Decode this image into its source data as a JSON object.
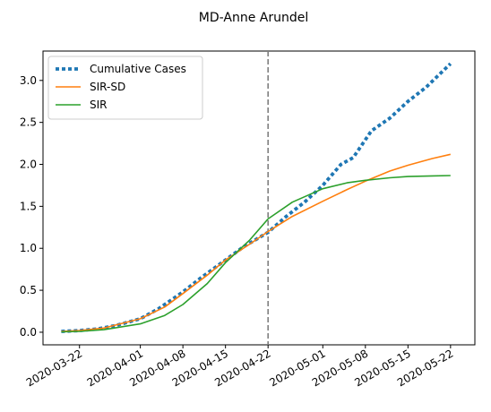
{
  "chart_data": {
    "type": "line",
    "title": "MD-Anne Arundel",
    "xlabel": "",
    "ylabel": "",
    "xlim": [
      "2020-03-16",
      "2020-05-26"
    ],
    "ylim": [
      -0.15,
      3.35
    ],
    "x_ticks": [
      "2020-03-22",
      "2020-04-01",
      "2020-04-08",
      "2020-04-15",
      "2020-04-22",
      "2020-05-01",
      "2020-05-08",
      "2020-05-15",
      "2020-05-22"
    ],
    "y_ticks": [
      "0.0",
      "0.5",
      "1.0",
      "1.5",
      "2.0",
      "2.5",
      "3.0"
    ],
    "legend_position": "top-left",
    "vline": {
      "x": "2020-04-22",
      "color": "#7f7f7f",
      "style": "dashed"
    },
    "series": [
      {
        "name": "Cumulative Cases",
        "color": "#1f77b4",
        "style": "dotted",
        "x": [
          "2020-03-19",
          "2020-03-22",
          "2020-03-25",
          "2020-03-28",
          "2020-04-01",
          "2020-04-04",
          "2020-04-08",
          "2020-04-11",
          "2020-04-15",
          "2020-04-18",
          "2020-04-22",
          "2020-04-25",
          "2020-04-28",
          "2020-05-01",
          "2020-05-04",
          "2020-05-06",
          "2020-05-09",
          "2020-05-12",
          "2020-05-15",
          "2020-05-18",
          "2020-05-22"
        ],
        "values": [
          0.01,
          0.02,
          0.04,
          0.08,
          0.16,
          0.28,
          0.48,
          0.65,
          0.86,
          1.02,
          1.19,
          1.38,
          1.55,
          1.75,
          2.0,
          2.08,
          2.4,
          2.55,
          2.75,
          2.92,
          3.2
        ]
      },
      {
        "name": "SIR-SD",
        "color": "#ff7f0e",
        "style": "solid",
        "x": [
          "2020-03-19",
          "2020-03-22",
          "2020-03-26",
          "2020-04-01",
          "2020-04-05",
          "2020-04-08",
          "2020-04-12",
          "2020-04-15",
          "2020-04-19",
          "2020-04-22",
          "2020-04-26",
          "2020-05-01",
          "2020-05-05",
          "2020-05-08",
          "2020-05-12",
          "2020-05-15",
          "2020-05-19",
          "2020-05-22"
        ],
        "values": [
          0.01,
          0.02,
          0.05,
          0.16,
          0.3,
          0.46,
          0.68,
          0.86,
          1.05,
          1.2,
          1.38,
          1.56,
          1.7,
          1.8,
          1.92,
          1.99,
          2.07,
          2.12
        ]
      },
      {
        "name": "SIR",
        "color": "#2ca02c",
        "style": "solid",
        "x": [
          "2020-03-19",
          "2020-03-22",
          "2020-03-26",
          "2020-04-01",
          "2020-04-05",
          "2020-04-08",
          "2020-04-12",
          "2020-04-15",
          "2020-04-19",
          "2020-04-22",
          "2020-04-26",
          "2020-05-01",
          "2020-05-05",
          "2020-05-08",
          "2020-05-12",
          "2020-05-15",
          "2020-05-19",
          "2020-05-22"
        ],
        "values": [
          0.005,
          0.01,
          0.03,
          0.1,
          0.2,
          0.33,
          0.58,
          0.83,
          1.1,
          1.35,
          1.55,
          1.71,
          1.78,
          1.81,
          1.84,
          1.855,
          1.862,
          1.867
        ]
      }
    ]
  }
}
